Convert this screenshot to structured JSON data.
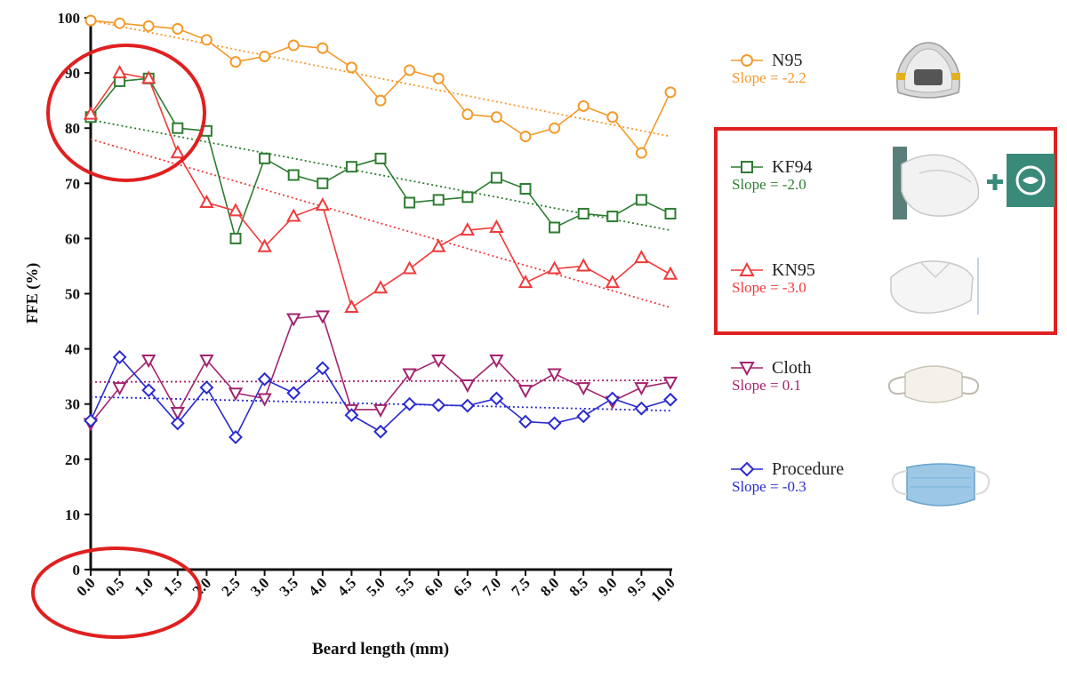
{
  "chart_data": {
    "type": "line",
    "xlabel": "Beard length (mm)",
    "ylabel": "FFE (%)",
    "ylim": [
      0,
      100
    ],
    "yticks": [
      0,
      10,
      20,
      30,
      40,
      50,
      60,
      70,
      80,
      90,
      100
    ],
    "x": [
      0,
      0.5,
      1,
      1.5,
      2,
      2.5,
      3,
      3.5,
      4,
      4.5,
      5,
      5.5,
      6,
      6.5,
      7,
      7.5,
      8,
      8.5,
      9,
      9.5,
      10
    ],
    "xtick_labels": [
      "0.0",
      "0.5",
      "1.0",
      "1.5",
      "2.0",
      "2.5",
      "3.0",
      "3.5",
      "4.0",
      "4.5",
      "5.0",
      "5.5",
      "6.0",
      "6.5",
      "7.0",
      "7.5",
      "8.0",
      "8.5",
      "9.0",
      "9.5",
      "10.0"
    ],
    "series": [
      {
        "name": "N95",
        "slope_label": "Slope = -2.2",
        "color": "#f39a2b",
        "marker": "circle",
        "values": [
          99.5,
          99,
          98.5,
          98,
          96,
          92,
          93,
          95,
          94.5,
          91,
          85,
          90.5,
          89,
          82.5,
          82,
          78.5,
          80,
          84,
          82,
          75.5,
          86.5
        ],
        "trend": [
          99.5,
          78.5
        ]
      },
      {
        "name": "KF94",
        "slope_label": "Slope = -2.0",
        "color": "#2e7d32",
        "marker": "square",
        "values": [
          82,
          88.5,
          89,
          80,
          79.5,
          60,
          74.5,
          71.5,
          70,
          73,
          74.5,
          66.5,
          67,
          67.5,
          71,
          69,
          62,
          64.5,
          64,
          67,
          64.5
        ],
        "trend": [
          81.5,
          61.5
        ]
      },
      {
        "name": "KN95",
        "slope_label": "Slope = -3.0",
        "color": "#f03a3a",
        "marker": "triangle-up",
        "values": [
          82.5,
          90,
          89,
          75.5,
          66.5,
          65,
          58.5,
          64,
          66,
          47.5,
          51,
          54.5,
          58.5,
          61.5,
          62,
          52,
          54.5,
          55,
          52,
          56.5,
          53.5
        ],
        "trend": [
          78,
          47.5
        ]
      },
      {
        "name": "Cloth",
        "slope_label": "Slope = 0.1",
        "color": "#a3246e",
        "marker": "triangle-down",
        "values": [
          26.5,
          33,
          38,
          28.5,
          38,
          32,
          31,
          45.5,
          46,
          29,
          29,
          35.5,
          38,
          33.5,
          38,
          32.5,
          35.5,
          33,
          30.5,
          33,
          34
        ],
        "trend": [
          34,
          34.3
        ]
      },
      {
        "name": "Procedure",
        "slope_label": "Slope = -0.3",
        "color": "#2a2ad0",
        "marker": "diamond",
        "values": [
          27,
          38.5,
          32.5,
          26.5,
          33,
          24,
          34.5,
          32,
          36.5,
          28,
          25,
          30,
          29.8,
          29.7,
          31,
          26.8,
          26.5,
          27.8,
          31,
          29.2,
          30.8
        ],
        "trend": [
          31.3,
          28.8
        ]
      }
    ]
  },
  "icons": {
    "N95": "n95-respirator-photo",
    "KF94": "kf94-mask-photo",
    "KN95": "kn95-mask-photo",
    "Cloth": "cloth-mask-photo",
    "Procedure": "procedure-mask-photo"
  },
  "highlight_color": "#e02020"
}
